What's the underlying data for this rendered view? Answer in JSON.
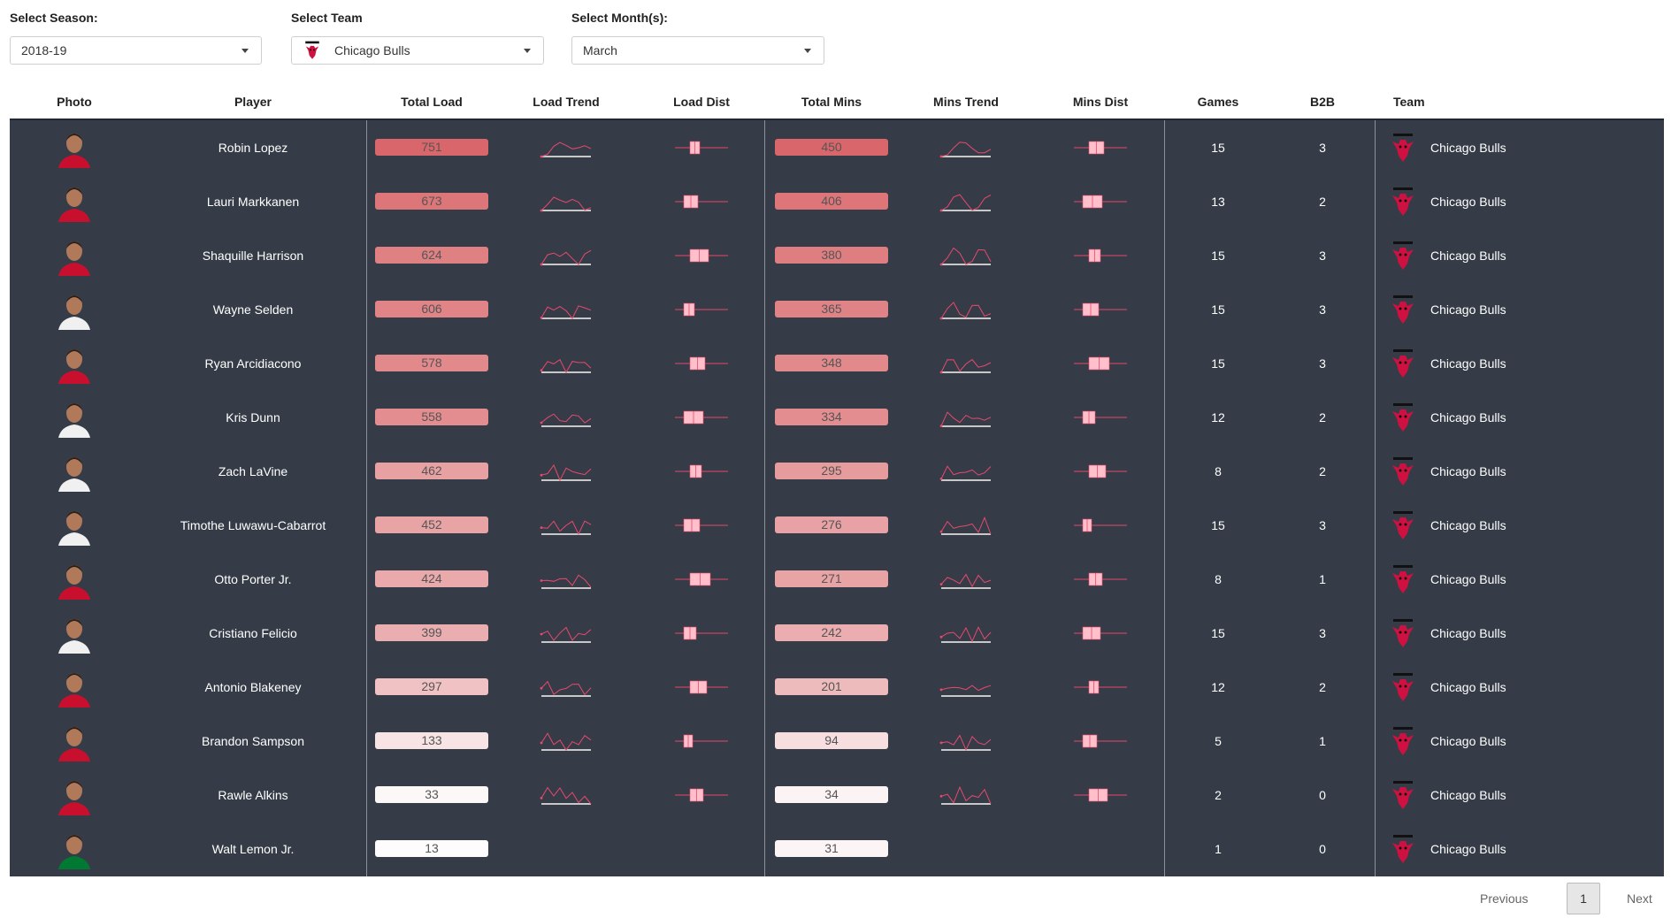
{
  "filters": {
    "season": {
      "label": "Select Season:",
      "value": "2018-19"
    },
    "team": {
      "label": "Select Team",
      "value": "Chicago Bulls"
    },
    "month": {
      "label": "Select Month(s):",
      "value": "March"
    }
  },
  "columns": [
    "Photo",
    "Player",
    "Total Load",
    "Load Trend",
    "Load Dist",
    "Total Mins",
    "Mins Trend",
    "Mins Dist",
    "Games",
    "B2B",
    "Team"
  ],
  "colors": {
    "table_bg": "#353c47",
    "bar_high": "#d9666a",
    "bar_low": "#ffffff",
    "sparkline": "#e8496d",
    "box_fill": "#ffc0cb",
    "grid": "#c8c8c8"
  },
  "players": [
    {
      "name": "Robin Lopez",
      "load": 751,
      "mins": 450,
      "games": 15,
      "b2b": 3,
      "team": "Chicago Bulls",
      "jersey": "red"
    },
    {
      "name": "Lauri Markkanen",
      "load": 673,
      "mins": 406,
      "games": 13,
      "b2b": 2,
      "team": "Chicago Bulls",
      "jersey": "red"
    },
    {
      "name": "Shaquille Harrison",
      "load": 624,
      "mins": 380,
      "games": 15,
      "b2b": 3,
      "team": "Chicago Bulls",
      "jersey": "red"
    },
    {
      "name": "Wayne Selden",
      "load": 606,
      "mins": 365,
      "games": 15,
      "b2b": 3,
      "team": "Chicago Bulls",
      "jersey": "white"
    },
    {
      "name": "Ryan Arcidiacono",
      "load": 578,
      "mins": 348,
      "games": 15,
      "b2b": 3,
      "team": "Chicago Bulls",
      "jersey": "red"
    },
    {
      "name": "Kris Dunn",
      "load": 558,
      "mins": 334,
      "games": 12,
      "b2b": 2,
      "team": "Chicago Bulls",
      "jersey": "white"
    },
    {
      "name": "Zach LaVine",
      "load": 462,
      "mins": 295,
      "games": 8,
      "b2b": 2,
      "team": "Chicago Bulls",
      "jersey": "white"
    },
    {
      "name": "Timothe Luwawu-Cabarrot",
      "load": 452,
      "mins": 276,
      "games": 15,
      "b2b": 3,
      "team": "Chicago Bulls",
      "jersey": "white"
    },
    {
      "name": "Otto Porter Jr.",
      "load": 424,
      "mins": 271,
      "games": 8,
      "b2b": 1,
      "team": "Chicago Bulls",
      "jersey": "red"
    },
    {
      "name": "Cristiano Felicio",
      "load": 399,
      "mins": 242,
      "games": 15,
      "b2b": 3,
      "team": "Chicago Bulls",
      "jersey": "white"
    },
    {
      "name": "Antonio Blakeney",
      "load": 297,
      "mins": 201,
      "games": 12,
      "b2b": 2,
      "team": "Chicago Bulls",
      "jersey": "red"
    },
    {
      "name": "Brandon Sampson",
      "load": 133,
      "mins": 94,
      "games": 5,
      "b2b": 1,
      "team": "Chicago Bulls",
      "jersey": "red"
    },
    {
      "name": "Rawle Alkins",
      "load": 33,
      "mins": 34,
      "games": 2,
      "b2b": 0,
      "team": "Chicago Bulls",
      "jersey": "red"
    },
    {
      "name": "Walt Lemon Jr.",
      "load": 13,
      "mins": 31,
      "games": 1,
      "b2b": 0,
      "team": "Chicago Bulls",
      "jersey": "green"
    }
  ],
  "pagination": {
    "previous": "Previous",
    "current": "1",
    "next": "Next"
  }
}
